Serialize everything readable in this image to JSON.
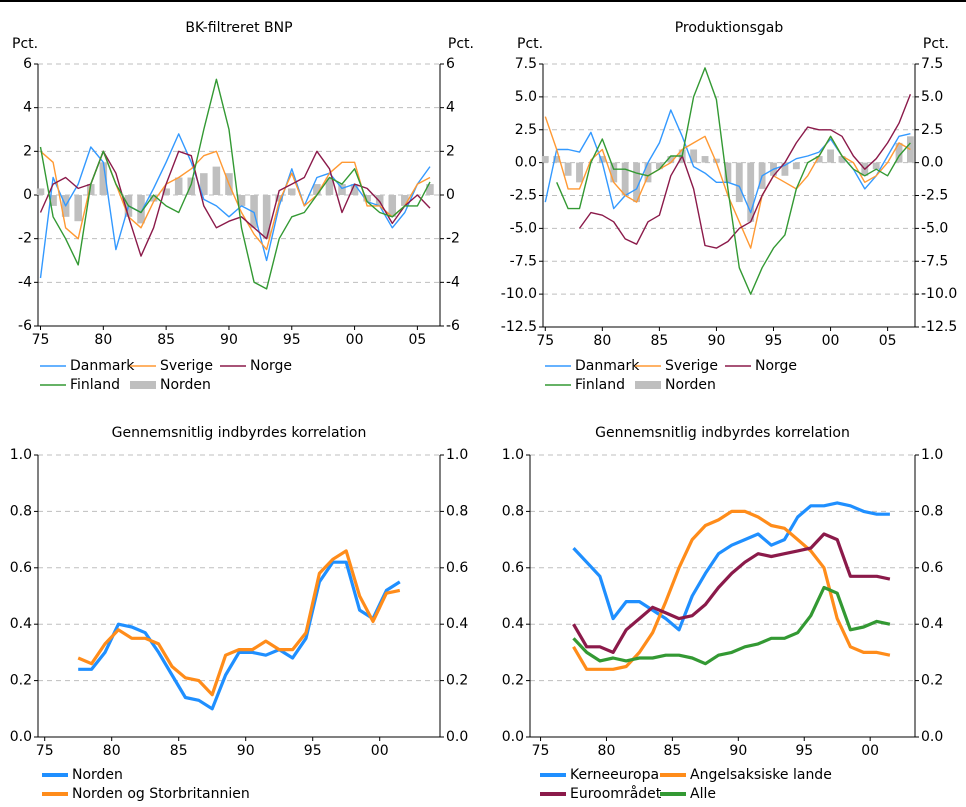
{
  "chart_data": [
    {
      "type": "line",
      "title": "BK-filtreret BNP",
      "ylabel": "Pct.",
      "y2label": "Pct.",
      "x": [
        1975,
        1976,
        1977,
        1978,
        1979,
        1980,
        1981,
        1982,
        1983,
        1984,
        1985,
        1986,
        1987,
        1988,
        1989,
        1990,
        1991,
        1992,
        1993,
        1994,
        1995,
        1996,
        1997,
        1998,
        1999,
        2000,
        2001,
        2002,
        2003,
        2004,
        2005,
        2006
      ],
      "xlim": [
        1974.8,
        2006.8
      ],
      "xticks": [
        {
          "value": 1975,
          "label": "75"
        },
        {
          "value": 1980,
          "label": "80"
        },
        {
          "value": 1985,
          "label": "85"
        },
        {
          "value": 1990,
          "label": "90"
        },
        {
          "value": 1995,
          "label": "95"
        },
        {
          "value": 2000,
          "label": "00"
        },
        {
          "value": 2005,
          "label": "05"
        }
      ],
      "ylim": [
        -6,
        6
      ],
      "yticks": [
        -6,
        -4,
        -2,
        0,
        2,
        4,
        6
      ],
      "grid": true,
      "series": [
        {
          "name": "Norden",
          "type": "bar",
          "color": "#bfbfbf",
          "values": [
            0.3,
            -0.5,
            -1.0,
            -1.2,
            0.5,
            1.5,
            0.0,
            -1.0,
            -1.3,
            -0.3,
            0.3,
            0.8,
            0.8,
            1.0,
            1.3,
            1.0,
            -0.5,
            -1.5,
            -2.0,
            -0.3,
            0.3,
            0.0,
            0.5,
            0.8,
            0.5,
            0.5,
            -0.3,
            -0.5,
            -1.0,
            -0.5,
            0.0,
            0.5
          ]
        },
        {
          "name": "Danmark",
          "color": "#3399ff",
          "values": [
            -3.8,
            0.8,
            -0.5,
            0.5,
            2.2,
            1.5,
            -2.5,
            -0.5,
            -0.8,
            0.3,
            1.5,
            2.8,
            1.5,
            -0.2,
            -0.5,
            -1.0,
            -0.5,
            -0.8,
            -3.0,
            -0.5,
            1.2,
            -0.5,
            0.8,
            1.0,
            0.3,
            0.5,
            -0.3,
            -0.5,
            -1.5,
            -0.8,
            0.5,
            1.3
          ]
        },
        {
          "name": "Sverige",
          "color": "#ff9933",
          "values": [
            2.0,
            1.5,
            -1.5,
            -2.0,
            0.5,
            2.0,
            0.5,
            -1.0,
            -1.5,
            -0.3,
            0.5,
            0.8,
            1.2,
            1.8,
            2.0,
            0.5,
            -0.8,
            -1.8,
            -2.5,
            -0.3,
            1.0,
            -0.5,
            0.0,
            1.0,
            1.5,
            1.5,
            -0.5,
            -0.5,
            -1.0,
            -0.5,
            0.5,
            0.8
          ]
        },
        {
          "name": "Norge",
          "color": "#8b1a4a",
          "values": [
            -0.8,
            0.5,
            0.8,
            0.3,
            0.5,
            2.0,
            1.0,
            -1.0,
            -2.8,
            -1.5,
            0.5,
            2.0,
            1.8,
            -0.5,
            -1.5,
            -1.2,
            -1.0,
            -1.5,
            -2.0,
            0.2,
            0.5,
            0.8,
            2.0,
            1.2,
            -0.8,
            0.5,
            0.3,
            -0.3,
            -1.3,
            -0.5,
            0.0,
            -0.6
          ]
        },
        {
          "name": "Finland",
          "color": "#339933",
          "values": [
            2.2,
            -1.0,
            -2.0,
            -3.2,
            0.5,
            2.0,
            0.5,
            -0.5,
            -0.8,
            0.0,
            -0.5,
            -0.8,
            0.5,
            3.0,
            5.3,
            3.0,
            -1.5,
            -4.0,
            -4.3,
            -2.0,
            -1.0,
            -0.8,
            0.0,
            0.8,
            0.5,
            1.2,
            -0.3,
            -0.8,
            -1.0,
            -0.5,
            -0.5,
            0.6
          ]
        }
      ]
    },
    {
      "type": "line",
      "title": "Produktionsgab",
      "ylabel": "Pct.",
      "y2label": "Pct.",
      "x": [
        1975,
        1976,
        1977,
        1978,
        1979,
        1980,
        1981,
        1982,
        1983,
        1984,
        1985,
        1986,
        1987,
        1988,
        1989,
        1990,
        1991,
        1992,
        1993,
        1994,
        1995,
        1996,
        1997,
        1998,
        1999,
        2000,
        2001,
        2002,
        2003,
        2004,
        2005,
        2006,
        2007
      ],
      "xlim": [
        1974.8,
        2007.4
      ],
      "xticks": [
        {
          "value": 1975,
          "label": "75"
        },
        {
          "value": 1980,
          "label": "80"
        },
        {
          "value": 1985,
          "label": "85"
        },
        {
          "value": 1990,
          "label": "90"
        },
        {
          "value": 1995,
          "label": "95"
        },
        {
          "value": 2000,
          "label": "00"
        },
        {
          "value": 2005,
          "label": "05"
        }
      ],
      "ylim": [
        -12.5,
        7.5
      ],
      "yticks": [
        {
          "value": -12.5,
          "label": "-12.5"
        },
        {
          "value": -10,
          "label": "-10.0"
        },
        {
          "value": -7.5,
          "label": "-7.5"
        },
        {
          "value": -5,
          "label": "-5.0"
        },
        {
          "value": -2.5,
          "label": "-2.5"
        },
        {
          "value": 0,
          "label": "0.0"
        },
        {
          "value": 2.5,
          "label": "2.5"
        },
        {
          "value": 5,
          "label": "5.0"
        },
        {
          "value": 7.5,
          "label": "7.5"
        }
      ],
      "grid": true,
      "series": [
        {
          "name": "Norden",
          "type": "bar",
          "color": "#bfbfbf",
          "values": [
            0.5,
            0.5,
            -1.0,
            -1.5,
            0.0,
            0.5,
            -1.5,
            -2.5,
            -3.0,
            -1.5,
            -0.5,
            0.5,
            1.0,
            1.0,
            0.5,
            0.3,
            -1.5,
            -3.0,
            -4.5,
            -2.0,
            -1.0,
            -1.0,
            -0.5,
            0.0,
            0.5,
            1.0,
            0.5,
            0.0,
            -1.0,
            -0.5,
            0.0,
            1.5,
            2.0
          ]
        },
        {
          "name": "Danmark",
          "color": "#3399ff",
          "values": [
            -3.0,
            1.0,
            1.0,
            0.8,
            2.3,
            0.0,
            -3.5,
            -2.5,
            -2.0,
            0.0,
            1.5,
            4.0,
            2.0,
            -0.3,
            -0.8,
            -1.5,
            -1.5,
            -1.8,
            -3.8,
            -1.0,
            -0.5,
            -0.2,
            0.3,
            0.5,
            0.8,
            1.8,
            0.5,
            -0.5,
            -2.0,
            -1.0,
            0.5,
            2.0,
            2.2
          ]
        },
        {
          "name": "Sverige",
          "color": "#ff9933",
          "values": [
            3.5,
            1.0,
            -2.0,
            -2.0,
            0.2,
            1.0,
            -1.5,
            -2.5,
            -3.0,
            -1.0,
            -0.5,
            0.0,
            1.0,
            1.5,
            2.0,
            0.0,
            -2.5,
            -4.5,
            -6.5,
            -2.5,
            -1.0,
            -1.5,
            -2.0,
            -1.0,
            0.5,
            2.0,
            0.5,
            0.0,
            -1.5,
            -1.0,
            0.0,
            1.5,
            1.0
          ]
        },
        {
          "name": "Norge",
          "color": "#8b1a4a",
          "values": [
            null,
            null,
            null,
            -5.0,
            -3.8,
            -4.0,
            -4.5,
            -5.8,
            -6.2,
            -4.5,
            -4.0,
            -1.0,
            0.5,
            -2.0,
            -6.3,
            -6.5,
            -6.0,
            -5.0,
            -4.5,
            -2.5,
            -1.0,
            0.0,
            1.5,
            2.7,
            2.5,
            2.5,
            2.0,
            0.5,
            -0.5,
            0.3,
            1.5,
            3.0,
            5.2
          ]
        },
        {
          "name": "Finland",
          "color": "#339933",
          "values": [
            null,
            -1.5,
            -3.5,
            -3.5,
            0.0,
            1.8,
            -0.5,
            -0.5,
            -0.8,
            -1.0,
            -0.5,
            0.5,
            0.5,
            5.0,
            7.2,
            4.8,
            -2.0,
            -8.0,
            -10.0,
            -8.0,
            -6.5,
            -5.5,
            -2.0,
            0.0,
            0.5,
            2.0,
            0.5,
            -0.5,
            -1.0,
            -0.5,
            -1.0,
            0.5,
            1.5
          ]
        }
      ]
    },
    {
      "type": "line",
      "title": "Gennemsnitlig indbyrdes korrelation",
      "x": [
        1977.5,
        1978.5,
        1979.5,
        1980.5,
        1981.5,
        1982.5,
        1983.5,
        1984.5,
        1985.5,
        1986.5,
        1987.5,
        1988.5,
        1989.5,
        1990.5,
        1991.5,
        1992.5,
        1993.5,
        1994.5,
        1995.5,
        1996.5,
        1997.5,
        1998.5,
        1999.5,
        2000.5,
        2001.5
      ],
      "xlim": [
        1974.5,
        2004.5
      ],
      "xticks": [
        {
          "value": 1975,
          "label": "75"
        },
        {
          "value": 1980,
          "label": "80"
        },
        {
          "value": 1985,
          "label": "85"
        },
        {
          "value": 1990,
          "label": "90"
        },
        {
          "value": 1995,
          "label": "95"
        },
        {
          "value": 2000,
          "label": "00"
        }
      ],
      "ylim": [
        0,
        1
      ],
      "yticks": [
        {
          "value": 0,
          "label": "0.0"
        },
        {
          "value": 0.2,
          "label": "0.2"
        },
        {
          "value": 0.4,
          "label": "0.4"
        },
        {
          "value": 0.6,
          "label": "0.6"
        },
        {
          "value": 0.8,
          "label": "0.8"
        },
        {
          "value": 1,
          "label": "1.0"
        }
      ],
      "grid": true,
      "series": [
        {
          "name": "Norden",
          "color": "#1f8fff",
          "values": [
            0.24,
            0.24,
            0.3,
            0.4,
            0.39,
            0.37,
            0.3,
            0.22,
            0.14,
            0.13,
            0.1,
            0.22,
            0.3,
            0.3,
            0.29,
            0.31,
            0.28,
            0.35,
            0.55,
            0.62,
            0.62,
            0.45,
            0.42,
            0.52,
            0.55
          ]
        },
        {
          "name": "Norden og Storbritannien",
          "color": "#ff8c1a",
          "values": [
            0.28,
            0.26,
            0.33,
            0.38,
            0.35,
            0.35,
            0.33,
            0.25,
            0.21,
            0.2,
            0.15,
            0.29,
            0.31,
            0.31,
            0.34,
            0.31,
            0.31,
            0.37,
            0.58,
            0.63,
            0.66,
            0.5,
            0.41,
            0.51,
            0.52
          ]
        }
      ]
    },
    {
      "type": "line",
      "title": "Gennemsnitlig indbyrdes korrelation",
      "x": [
        1977.5,
        1978.5,
        1979.5,
        1980.5,
        1981.5,
        1982.5,
        1983.5,
        1984.5,
        1985.5,
        1986.5,
        1987.5,
        1988.5,
        1989.5,
        1990.5,
        1991.5,
        1992.5,
        1993.5,
        1994.5,
        1995.5,
        1996.5,
        1997.5,
        1998.5,
        1999.5,
        2000.5,
        2001.5
      ],
      "xlim": [
        1974.2,
        2003.4
      ],
      "xticks": [
        {
          "value": 1975,
          "label": "75"
        },
        {
          "value": 1980,
          "label": "80"
        },
        {
          "value": 1985,
          "label": "85"
        },
        {
          "value": 1990,
          "label": "90"
        },
        {
          "value": 1995,
          "label": "95"
        },
        {
          "value": 2000,
          "label": "00"
        }
      ],
      "ylim": [
        0,
        1
      ],
      "yticks": [
        {
          "value": 0,
          "label": "0.0"
        },
        {
          "value": 0.2,
          "label": "0.2"
        },
        {
          "value": 0.4,
          "label": "0.4"
        },
        {
          "value": 0.6,
          "label": "0.6"
        },
        {
          "value": 0.8,
          "label": "0.8"
        },
        {
          "value": 1,
          "label": "1.0"
        }
      ],
      "grid": true,
      "series": [
        {
          "name": "Kerneeuropa",
          "color": "#1f8fff",
          "values": [
            0.67,
            0.62,
            0.57,
            0.42,
            0.48,
            0.48,
            0.45,
            0.42,
            0.38,
            0.5,
            0.58,
            0.65,
            0.68,
            0.7,
            0.72,
            0.68,
            0.7,
            0.78,
            0.82,
            0.82,
            0.83,
            0.82,
            0.8,
            0.79,
            0.79
          ]
        },
        {
          "name": "Angelsaksiske lande",
          "color": "#ff8c1a",
          "values": [
            0.32,
            0.24,
            0.24,
            0.24,
            0.25,
            0.3,
            0.37,
            0.48,
            0.6,
            0.7,
            0.75,
            0.77,
            0.8,
            0.8,
            0.78,
            0.75,
            0.74,
            0.7,
            0.66,
            0.6,
            0.42,
            0.32,
            0.3,
            0.3,
            0.29
          ]
        },
        {
          "name": "Euroområdet",
          "color": "#8b1a4a",
          "values": [
            0.4,
            0.32,
            0.32,
            0.3,
            0.38,
            0.42,
            0.46,
            0.44,
            0.42,
            0.43,
            0.47,
            0.53,
            0.58,
            0.62,
            0.65,
            0.64,
            0.65,
            0.66,
            0.67,
            0.72,
            0.7,
            0.57,
            0.57,
            0.57,
            0.56
          ]
        },
        {
          "name": "Alle",
          "color": "#339933",
          "values": [
            0.35,
            0.3,
            0.27,
            0.28,
            0.27,
            0.28,
            0.28,
            0.29,
            0.29,
            0.28,
            0.26,
            0.29,
            0.3,
            0.32,
            0.33,
            0.35,
            0.35,
            0.37,
            0.43,
            0.53,
            0.51,
            0.38,
            0.39,
            0.41,
            0.4
          ]
        }
      ]
    }
  ]
}
